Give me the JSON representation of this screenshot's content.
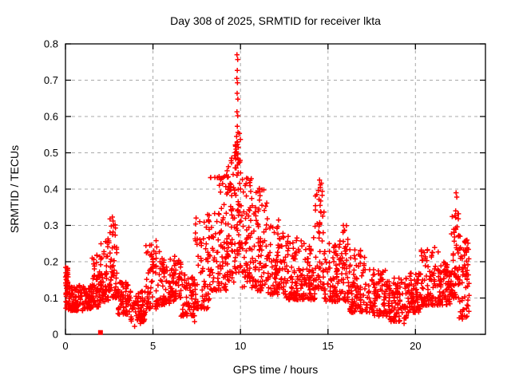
{
  "chart_data": {
    "type": "scatter",
    "title": "Day 308 of 2025, SRMTID for receiver lkta",
    "xlabel": "GPS time / hours",
    "ylabel": "SRMTID / TECUs",
    "xlim": [
      0,
      24
    ],
    "ylim": [
      0,
      0.8
    ],
    "xticks": [
      {
        "v": 0,
        "label": "0"
      },
      {
        "v": 5,
        "label": "5"
      },
      {
        "v": 10,
        "label": "10"
      },
      {
        "v": 15,
        "label": "15"
      },
      {
        "v": 20,
        "label": "20"
      }
    ],
    "yticks": [
      {
        "v": 0.0,
        "label": "0"
      },
      {
        "v": 0.1,
        "label": "0.1"
      },
      {
        "v": 0.2,
        "label": "0.2"
      },
      {
        "v": 0.3,
        "label": "0.3"
      },
      {
        "v": 0.4,
        "label": "0.4"
      },
      {
        "v": 0.5,
        "label": "0.5"
      },
      {
        "v": 0.6,
        "label": "0.6"
      },
      {
        "v": 0.7,
        "label": "0.7"
      },
      {
        "v": 0.8,
        "label": "0.8"
      }
    ],
    "grid": true,
    "legend": null,
    "marker": "plus",
    "marker_color": "#ff0000",
    "grid_color": "#a9a9a9",
    "axis_color": "#000000",
    "series_name": "SRMTID",
    "density_segments_comment": "Dense noisy scatter (~2200 pts) read as envelope segments: [x_start_h, x_end_h, n_points, y_min_TECU, y_max_TECU, bottom_bias]",
    "density_segments": [
      [
        0.0,
        0.15,
        40,
        0.07,
        0.185,
        1.1
      ],
      [
        0.15,
        1.0,
        85,
        0.065,
        0.135,
        1.3
      ],
      [
        1.0,
        1.5,
        50,
        0.07,
        0.135,
        1.3
      ],
      [
        1.5,
        1.95,
        48,
        0.075,
        0.22,
        1.7
      ],
      [
        1.95,
        2.45,
        55,
        0.09,
        0.265,
        1.5
      ],
      [
        2.45,
        2.95,
        52,
        0.1,
        0.32,
        1.4
      ],
      [
        2.95,
        3.6,
        58,
        0.055,
        0.145,
        1.3
      ],
      [
        3.6,
        4.6,
        78,
        0.035,
        0.12,
        1.2
      ],
      [
        4.6,
        5.45,
        70,
        0.07,
        0.25,
        1.8
      ],
      [
        5.45,
        6.6,
        100,
        0.08,
        0.215,
        1.5
      ],
      [
        6.6,
        7.4,
        68,
        0.05,
        0.17,
        1.4
      ],
      [
        7.4,
        8.25,
        75,
        0.07,
        0.33,
        1.9
      ],
      [
        8.25,
        9.2,
        90,
        0.12,
        0.44,
        1.8
      ],
      [
        9.2,
        9.65,
        55,
        0.14,
        0.49,
        1.4
      ],
      [
        9.65,
        10.05,
        65,
        0.17,
        0.56,
        1.3
      ],
      [
        10.05,
        10.65,
        60,
        0.13,
        0.43,
        1.5
      ],
      [
        10.65,
        11.55,
        85,
        0.12,
        0.4,
        1.8
      ],
      [
        11.55,
        12.6,
        95,
        0.11,
        0.3,
        1.6
      ],
      [
        12.6,
        14.25,
        150,
        0.095,
        0.27,
        1.7
      ],
      [
        14.25,
        14.8,
        55,
        0.12,
        0.42,
        1.7
      ],
      [
        14.8,
        15.65,
        75,
        0.09,
        0.25,
        1.6
      ],
      [
        15.65,
        16.2,
        50,
        0.09,
        0.3,
        1.7
      ],
      [
        16.2,
        17.5,
        110,
        0.06,
        0.24,
        1.7
      ],
      [
        17.5,
        18.4,
        80,
        0.05,
        0.18,
        1.5
      ],
      [
        18.4,
        19.5,
        95,
        0.035,
        0.155,
        1.3
      ],
      [
        19.5,
        20.3,
        70,
        0.06,
        0.17,
        1.4
      ],
      [
        20.3,
        21.3,
        90,
        0.08,
        0.24,
        1.7
      ],
      [
        21.3,
        22.0,
        75,
        0.08,
        0.2,
        1.3
      ],
      [
        22.0,
        22.5,
        55,
        0.1,
        0.34,
        1.5
      ],
      [
        22.5,
        23.1,
        60,
        0.045,
        0.27,
        1.2
      ]
    ],
    "notable_points_comment": "Readable extreme/outlier points [hour, TECU]",
    "notable_points": [
      [
        9.8,
        0.77
      ],
      [
        9.84,
        0.757
      ],
      [
        9.82,
        0.727
      ],
      [
        9.79,
        0.705
      ],
      [
        9.83,
        0.693
      ],
      [
        9.81,
        0.664
      ],
      [
        9.85,
        0.648
      ],
      [
        9.8,
        0.613
      ],
      [
        9.84,
        0.602
      ],
      [
        9.82,
        0.573
      ],
      [
        9.86,
        0.556
      ],
      [
        9.78,
        0.545
      ],
      [
        9.83,
        0.53
      ],
      [
        9.88,
        0.515
      ],
      [
        9.77,
        0.503
      ],
      [
        9.85,
        0.497
      ],
      [
        9.9,
        0.472
      ],
      [
        9.75,
        0.458
      ],
      [
        9.87,
        0.445
      ],
      [
        9.02,
        0.432
      ],
      [
        8.98,
        0.415
      ],
      [
        9.45,
        0.398
      ],
      [
        9.5,
        0.382
      ],
      [
        10.35,
        0.43
      ],
      [
        10.32,
        0.415
      ],
      [
        11.08,
        0.402
      ],
      [
        11.12,
        0.382
      ],
      [
        11.05,
        0.345
      ],
      [
        2.68,
        0.323
      ],
      [
        2.72,
        0.312
      ],
      [
        2.62,
        0.298
      ],
      [
        8.12,
        0.33
      ],
      [
        8.18,
        0.312
      ],
      [
        8.05,
        0.295
      ],
      [
        14.52,
        0.425
      ],
      [
        14.56,
        0.405
      ],
      [
        14.49,
        0.372
      ],
      [
        14.58,
        0.338
      ],
      [
        15.88,
        0.3
      ],
      [
        15.93,
        0.285
      ],
      [
        12.18,
        0.315
      ],
      [
        5.18,
        0.258
      ],
      [
        4.82,
        0.245
      ],
      [
        22.32,
        0.39
      ],
      [
        22.36,
        0.378
      ],
      [
        22.3,
        0.34
      ],
      [
        22.42,
        0.332
      ],
      [
        22.45,
        0.318
      ],
      [
        22.38,
        0.296
      ],
      [
        22.55,
        0.27
      ],
      [
        22.85,
        0.252
      ],
      [
        22.95,
        0.238
      ],
      [
        23.05,
        0.208
      ],
      [
        4.28,
        0.03
      ],
      [
        3.95,
        0.022
      ],
      [
        7.38,
        0.035
      ],
      [
        19.35,
        0.03
      ],
      [
        22.68,
        0.042
      ]
    ],
    "special_square_point": {
      "x": 2.0,
      "y": 0.005,
      "marker": "filled-square",
      "color": "#ff0000"
    }
  }
}
